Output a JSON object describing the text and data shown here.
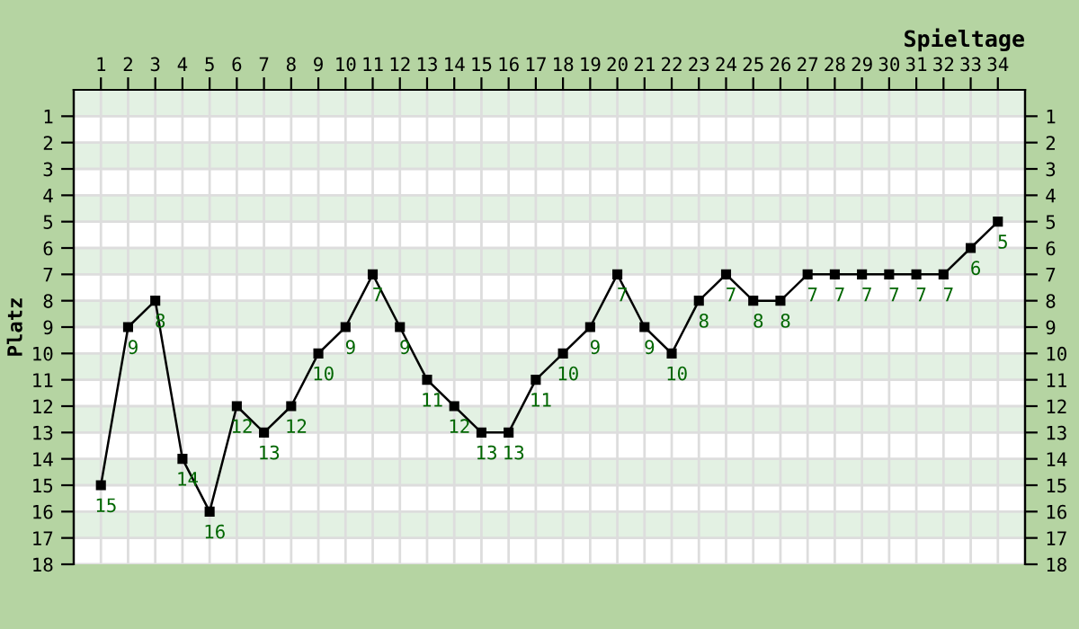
{
  "chart_data": {
    "type": "line",
    "xlabel": "Spieltage",
    "ylabel": "Platz",
    "x": [
      1,
      2,
      3,
      4,
      5,
      6,
      7,
      8,
      9,
      10,
      11,
      12,
      13,
      14,
      15,
      16,
      17,
      18,
      19,
      20,
      21,
      22,
      23,
      24,
      25,
      26,
      27,
      28,
      29,
      30,
      31,
      32,
      33,
      34
    ],
    "series": [
      {
        "color": "#000000",
        "values": [
          15,
          9,
          8,
          14,
          16,
          12,
          13,
          12,
          10,
          9,
          7,
          9,
          11,
          12,
          13,
          13,
          11,
          10,
          9,
          7,
          9,
          10,
          8,
          7,
          8,
          8,
          7,
          7,
          7,
          7,
          7,
          7,
          6,
          5
        ]
      }
    ],
    "data_labels": true,
    "marker": "square",
    "line_style": "solid",
    "grid": true,
    "legend": false,
    "xlim": [
      0,
      35
    ],
    "xticks": [
      1,
      2,
      3,
      4,
      5,
      6,
      7,
      8,
      9,
      10,
      11,
      12,
      13,
      14,
      15,
      16,
      17,
      18,
      19,
      20,
      21,
      22,
      23,
      24,
      25,
      26,
      27,
      28,
      29,
      30,
      31,
      32,
      33,
      34
    ],
    "ylim": [
      18,
      0
    ],
    "yticks": [
      1,
      2,
      3,
      4,
      5,
      6,
      7,
      8,
      9,
      10,
      11,
      12,
      13,
      14,
      15,
      16,
      17,
      18
    ],
    "y2lim": [
      18,
      0
    ],
    "y2ticks": [
      1,
      2,
      3,
      4,
      5,
      6,
      7,
      8,
      9,
      10,
      11,
      12,
      13,
      14,
      15,
      16,
      17,
      18
    ]
  }
}
